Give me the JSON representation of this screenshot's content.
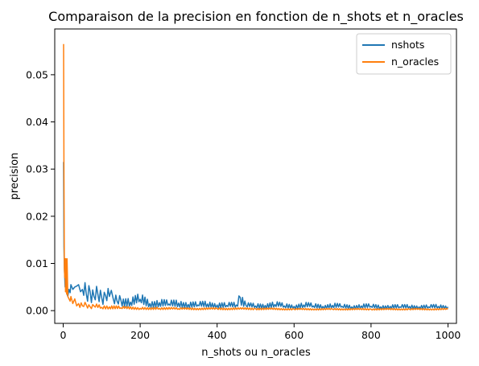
{
  "chart_data": {
    "type": "line",
    "title": "Comparaison de la precision en fonction de n_shots et n_oracles",
    "xlabel": "n_shots ou n_oracles",
    "ylabel": "precision",
    "xlim": [
      -22,
      1022
    ],
    "ylim": [
      -0.0027,
      0.0597
    ],
    "xticks": [
      0,
      200,
      400,
      600,
      800,
      1000
    ],
    "xtick_labels": [
      "0",
      "200",
      "400",
      "600",
      "800",
      "1000"
    ],
    "yticks": [
      0.0,
      0.01,
      0.02,
      0.03,
      0.04,
      0.05
    ],
    "ytick_labels": [
      "0.00",
      "0.01",
      "0.02",
      "0.03",
      "0.04",
      "0.05"
    ],
    "grid": false,
    "legend_position": "top-right",
    "series": [
      {
        "name": "nshots",
        "color": "#1f77b4",
        "x": [
          1,
          2,
          3,
          4,
          5,
          6,
          8,
          10,
          12,
          15,
          18,
          20,
          25,
          30,
          35,
          40,
          45,
          50,
          60,
          70,
          80,
          90,
          100,
          110,
          120,
          125,
          130,
          140,
          150,
          175,
          200,
          225,
          250,
          275,
          300,
          325,
          350,
          375,
          400,
          425,
          450,
          460,
          475,
          500,
          525,
          550,
          575,
          600,
          625,
          650,
          675,
          700,
          725,
          750,
          775,
          800,
          825,
          850,
          875,
          900,
          925,
          950,
          975,
          1000
        ],
        "values": [
          0.0315,
          0.0135,
          0.009,
          0.007,
          0.005,
          0.0055,
          0.004,
          0.0035,
          0.003,
          0.0045,
          0.0038,
          0.0055,
          0.0045,
          0.005,
          0.0052,
          0.0055,
          0.004,
          0.0045,
          0.0035,
          0.004,
          0.003,
          0.0035,
          0.0028,
          0.0032,
          0.003,
          0.0043,
          0.0025,
          0.002,
          0.0022,
          0.0018,
          0.0024,
          0.0015,
          0.0017,
          0.0014,
          0.0016,
          0.0013,
          0.0012,
          0.0014,
          0.0012,
          0.0011,
          0.0012,
          0.0028,
          0.0011,
          0.001,
          0.0011,
          0.0013,
          0.001,
          0.0009,
          0.0012,
          0.001,
          0.0009,
          0.0011,
          0.0009,
          0.0008,
          0.001,
          0.0009,
          0.0008,
          0.0009,
          0.0008,
          0.0009,
          0.0008,
          0.0008,
          0.0009,
          0.0008
        ]
      },
      {
        "name": "n_oracles",
        "color": "#ff7f0e",
        "x": [
          1,
          2,
          3,
          4,
          5,
          6,
          7,
          8,
          9,
          10,
          12,
          15,
          18,
          20,
          25,
          30,
          35,
          40,
          50,
          60,
          70,
          80,
          100,
          120,
          150,
          200,
          250,
          300,
          400,
          500,
          600,
          700,
          800,
          900,
          1000
        ],
        "values": [
          0.0565,
          0.028,
          0.009,
          0.007,
          0.011,
          0.004,
          0.011,
          0.005,
          0.0035,
          0.011,
          0.003,
          0.0025,
          0.002,
          0.003,
          0.0015,
          0.0025,
          0.001,
          0.0015,
          0.001,
          0.0012,
          0.0008,
          0.001,
          0.0007,
          0.0008,
          0.0006,
          0.0005,
          0.0005,
          0.0004,
          0.0004,
          0.0004,
          0.0003,
          0.0003,
          0.0003,
          0.0003,
          0.0003
        ]
      }
    ]
  }
}
